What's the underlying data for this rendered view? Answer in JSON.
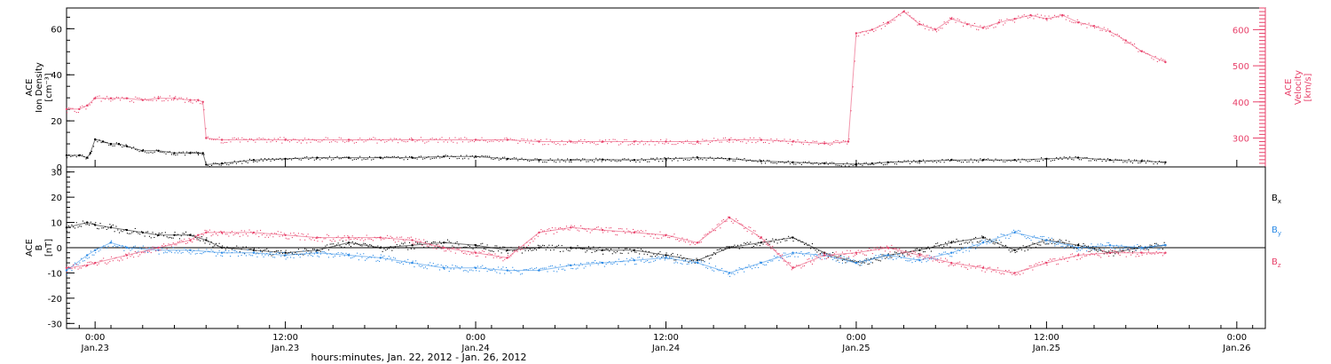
{
  "colors": {
    "density": "#000000",
    "velocity": "#e8416a",
    "bx": "#000000",
    "by": "#2b8ae6",
    "bz": "#e8416a",
    "axis": "#000000"
  },
  "xaxis": {
    "label": "hours:minutes, Jan. 22, 2012 - Jan. 26, 2012",
    "range_hours": [
      -1.8,
      73.8
    ],
    "ticks": [
      {
        "hour": 0,
        "time": "0:00",
        "date": "Jan.23"
      },
      {
        "hour": 12,
        "time": "12:00",
        "date": "Jan.23"
      },
      {
        "hour": 24,
        "time": "0:00",
        "date": "Jan.24"
      },
      {
        "hour": 36,
        "time": "12:00",
        "date": "Jan.24"
      },
      {
        "hour": 48,
        "time": "0:00",
        "date": "Jan.25"
      },
      {
        "hour": 60,
        "time": "12:00",
        "date": "Jan.25"
      },
      {
        "hour": 72,
        "time": "0:00",
        "date": "Jan.26"
      }
    ]
  },
  "chart_data": [
    {
      "type": "scatter",
      "panel": "top",
      "left_axis": {
        "label_lines": [
          "ACE",
          "Ion Density",
          "[cm⁻³]"
        ],
        "ylim": [
          0,
          69
        ],
        "ticks": [
          0,
          20,
          40,
          60
        ]
      },
      "right_axis": {
        "label_lines": [
          "ACE",
          "Velocity",
          "[km/s]"
        ],
        "ylim": [
          220,
          660
        ],
        "ticks": [
          300,
          400,
          500,
          600
        ]
      },
      "series": [
        {
          "key": "density",
          "axis": "left",
          "x": [
            -1.8,
            -1.0,
            -0.5,
            -0.3,
            0.0,
            0.5,
            1.0,
            1.5,
            2.0,
            3.0,
            4.0,
            5.0,
            6.0,
            6.5,
            6.8,
            7.0,
            8.0,
            10,
            12,
            14,
            16,
            18,
            20,
            22,
            24,
            26,
            28,
            30,
            32,
            34,
            36,
            38,
            40,
            42,
            44,
            46,
            48,
            49,
            50,
            52,
            54,
            56,
            58,
            60,
            62,
            64,
            66,
            67.5
          ],
          "y": [
            5,
            5,
            4,
            6,
            12,
            11,
            10,
            10,
            9,
            7,
            7,
            6,
            6,
            6,
            6,
            1,
            1.5,
            3,
            3.5,
            4,
            4,
            4,
            4,
            4.5,
            4.5,
            3.5,
            3,
            3,
            3.2,
            3,
            3.5,
            4,
            3.5,
            2.5,
            2,
            1.5,
            1.2,
            1.5,
            2,
            2.5,
            3,
            3,
            3,
            3.5,
            4,
            3,
            2.5,
            2
          ]
        },
        {
          "key": "velocity",
          "axis": "right",
          "x": [
            -1.8,
            -1.0,
            -0.5,
            0.0,
            1.0,
            2.0,
            3.0,
            4.0,
            5.0,
            6.0,
            6.5,
            6.8,
            7.0,
            8.0,
            12,
            16,
            20,
            24,
            26,
            28,
            30,
            32,
            34,
            36,
            38,
            40,
            42,
            44,
            46,
            47.5,
            48.0,
            49,
            50,
            51,
            52,
            53,
            54,
            55,
            56,
            57,
            58,
            59,
            60,
            61,
            62,
            63,
            64,
            65,
            66,
            67.5
          ],
          "y": [
            380,
            380,
            390,
            410,
            410,
            410,
            405,
            410,
            410,
            405,
            405,
            400,
            300,
            295,
            295,
            295,
            295,
            295,
            295,
            290,
            290,
            290,
            290,
            290,
            290,
            295,
            295,
            290,
            285,
            290,
            590,
            600,
            620,
            650,
            615,
            600,
            630,
            615,
            605,
            620,
            630,
            640,
            630,
            640,
            620,
            610,
            595,
            570,
            540,
            510
          ]
        }
      ]
    },
    {
      "type": "scatter",
      "panel": "bottom",
      "left_axis": {
        "label_lines": [
          "ACE",
          "B",
          "[nT]"
        ],
        "ylim": [
          -32,
          32
        ],
        "ticks": [
          -30,
          -20,
          -10,
          0,
          10,
          20,
          30
        ]
      },
      "series": [
        {
          "key": "bx",
          "name": "B",
          "sub": "x",
          "x": [
            -1.8,
            -0.5,
            0,
            1,
            2,
            3,
            4,
            5,
            6,
            7,
            8,
            10,
            12,
            14,
            16,
            18,
            20,
            22,
            24,
            26,
            28,
            30,
            32,
            34,
            36,
            38,
            40,
            42,
            44,
            46,
            48,
            50,
            52,
            54,
            56,
            58,
            60,
            62,
            64,
            66,
            67.5
          ],
          "y": [
            8,
            10,
            9,
            8,
            7,
            6,
            5,
            5,
            5,
            3,
            0,
            -1,
            -2,
            -1,
            2,
            0,
            1,
            2,
            1,
            -1,
            0,
            0,
            -1,
            -1,
            -3,
            -5,
            0,
            2,
            4,
            -2,
            -6,
            -3,
            -1,
            2,
            4,
            -1,
            3,
            1,
            -2,
            0,
            1
          ]
        },
        {
          "key": "by",
          "name": "B",
          "sub": "y",
          "x": [
            -1.8,
            -0.5,
            0,
            1,
            2,
            4,
            6,
            8,
            10,
            12,
            14,
            16,
            18,
            20,
            22,
            24,
            26,
            28,
            30,
            32,
            34,
            36,
            38,
            40,
            42,
            44,
            46,
            48,
            50,
            52,
            54,
            56,
            58,
            60,
            62,
            64,
            66,
            67.5
          ],
          "y": [
            -9,
            -3,
            -1,
            2,
            0,
            -1,
            -1,
            -2,
            -2,
            -3,
            -2,
            -3,
            -4,
            -6,
            -8,
            -8,
            -9,
            -9,
            -7,
            -6,
            -5,
            -4,
            -6,
            -10,
            -6,
            -2,
            -3,
            -6,
            -3,
            -5,
            -2,
            2,
            6,
            3,
            0,
            1,
            0,
            1
          ]
        },
        {
          "key": "bz",
          "name": "B",
          "sub": "z",
          "x": [
            -1.8,
            -0.5,
            0,
            2,
            4,
            6,
            6.5,
            7,
            8,
            10,
            12,
            14,
            16,
            18,
            20,
            22,
            24,
            26,
            28,
            30,
            32,
            34,
            36,
            38,
            40,
            42,
            44,
            46,
            48,
            50,
            52,
            54,
            56,
            58,
            60,
            62,
            64,
            66,
            67.5
          ],
          "y": [
            -8,
            -7,
            -6,
            -3,
            0,
            3,
            5,
            6,
            6,
            6,
            5,
            4,
            4,
            4,
            3,
            0,
            -2,
            -4,
            6,
            8,
            7,
            6,
            5,
            2,
            12,
            4,
            -8,
            -3,
            -2,
            0,
            -3,
            -6,
            -8,
            -10,
            -6,
            -3,
            -2,
            -2,
            -2
          ]
        }
      ]
    }
  ]
}
